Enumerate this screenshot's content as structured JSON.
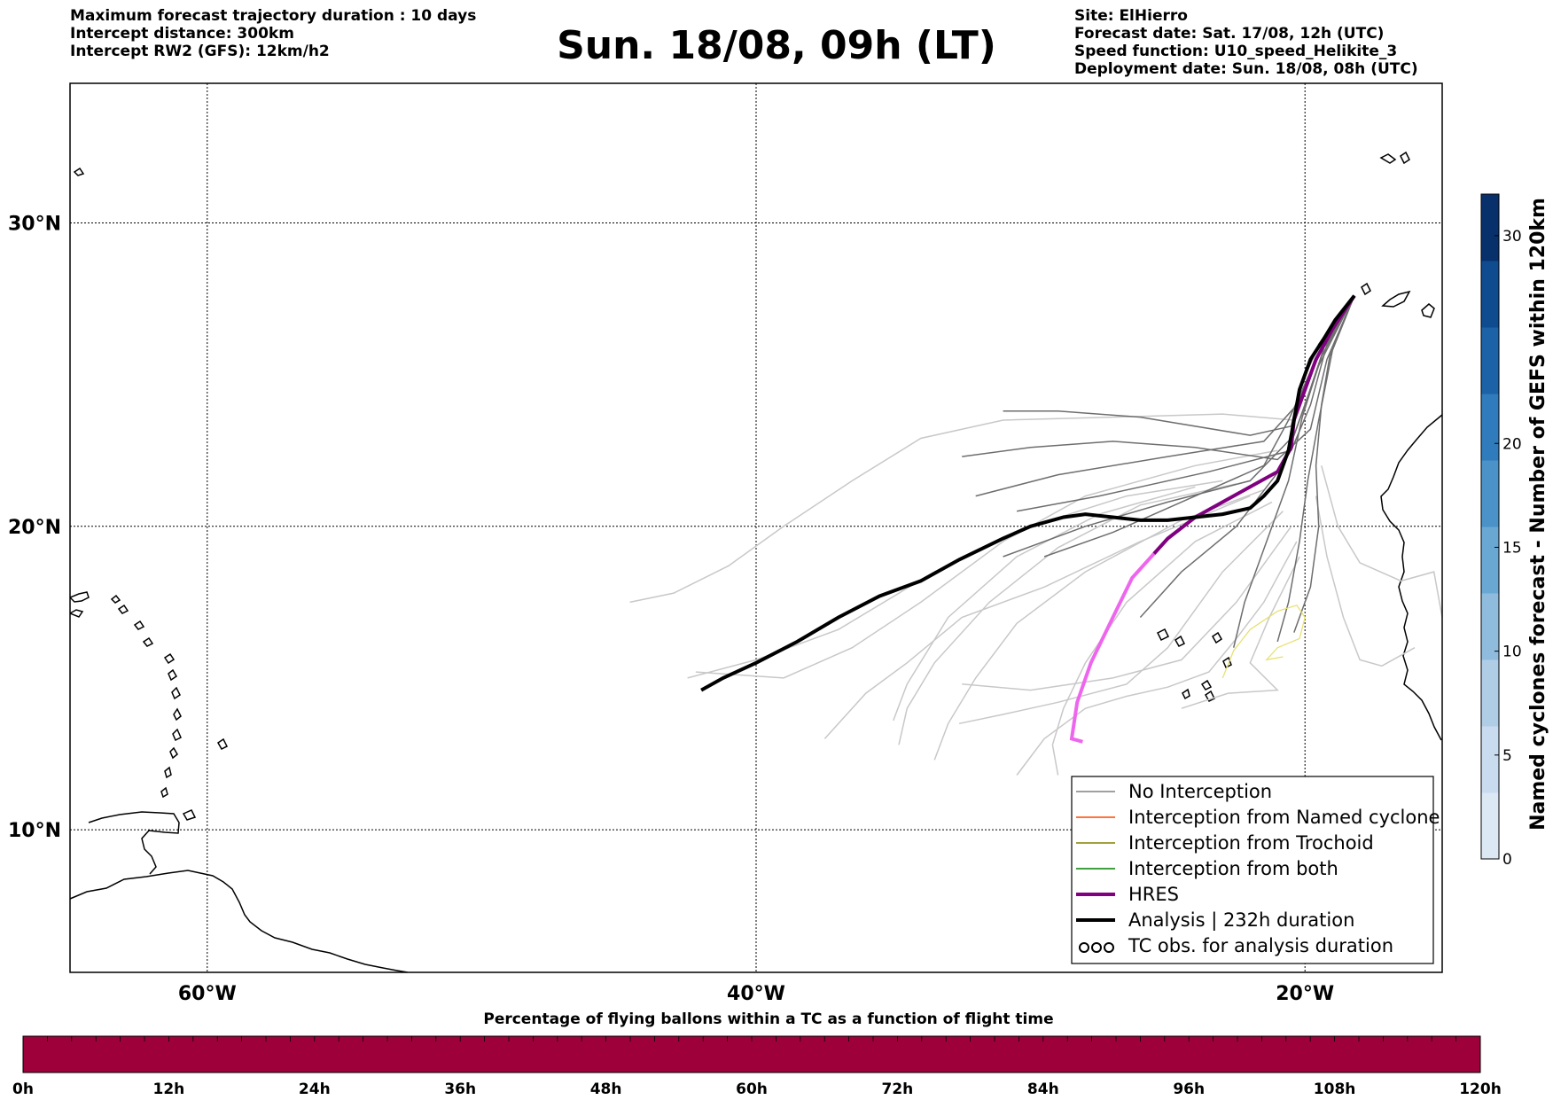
{
  "header_left": [
    "Maximum forecast trajectory duration : 10 days",
    "Intercept distance: 300km",
    "Intercept RW2 (GFS):  12km/h2"
  ],
  "title": "Sun. 18/08, 09h (LT)",
  "header_right": [
    "Site: ElHierro",
    "Forecast date: Sat. 17/08, 12h (UTC)",
    "Speed function: U10_speed_Helikite_3",
    "Deployment date: Sun. 18/08, 08h (UTC)"
  ],
  "map": {
    "lat_labels": [
      "30°N",
      "20°N",
      "10°N"
    ],
    "lon_labels": [
      "60°W",
      "40°W",
      "20°W"
    ],
    "lat_range": [
      5.3,
      34.6
    ],
    "lon_range": [
      -65,
      -15
    ],
    "grid": true
  },
  "legend": {
    "position": "lower-right",
    "items": [
      {
        "label": "No Interception",
        "color": "#808080",
        "style": "thin"
      },
      {
        "label": "Interception from Named cyclone",
        "color": "#ff4500",
        "style": "thin"
      },
      {
        "label": "Interception from Trochoid",
        "color": "#808000",
        "style": "thin"
      },
      {
        "label": "Interception from both",
        "color": "#008000",
        "style": "thin"
      },
      {
        "label": "HRES",
        "color": "#800080",
        "style": "thick"
      },
      {
        "label": "Analysis | 232h duration",
        "color": "#000000",
        "style": "thick"
      },
      {
        "label": "TC obs. for analysis duration",
        "color": "#000000",
        "style": "tc-symbol"
      }
    ]
  },
  "colorbar_right": {
    "label": "Named cyclones forecast - Number of GEFS within 120km",
    "ticks": [
      "0",
      "5",
      "10",
      "15",
      "20",
      "30"
    ],
    "tick_values": [
      0,
      5,
      10,
      15,
      20,
      30
    ],
    "max": 32,
    "colors": [
      "#dde8f5",
      "#c9dbef",
      "#b0cde6",
      "#8fbcdd",
      "#6aa8d4",
      "#4a92c7",
      "#2f7bbb",
      "#1b62a6",
      "#0e4b8f",
      "#08306b"
    ]
  },
  "colorbar_bottom": {
    "title": "Percentage of flying ballons within a TC as a function of flight time",
    "ticks": [
      "0h",
      "12h",
      "24h",
      "36h",
      "48h",
      "60h",
      "72h",
      "84h",
      "96h",
      "108h",
      "120h"
    ],
    "fill_color": "#9e003a"
  },
  "trajectories": {
    "analysis": [
      [
        -42.0,
        14.6
      ],
      [
        -41.2,
        15.0
      ],
      [
        -40.0,
        15.5
      ],
      [
        -38.5,
        16.2
      ],
      [
        -37.0,
        17.0
      ],
      [
        -35.5,
        17.7
      ],
      [
        -34.0,
        18.2
      ],
      [
        -32.6,
        18.9
      ],
      [
        -31.0,
        19.6
      ],
      [
        -30.0,
        20.0
      ],
      [
        -28.8,
        20.3
      ],
      [
        -28.0,
        20.4
      ],
      [
        -27.0,
        20.3
      ],
      [
        -26.0,
        20.2
      ],
      [
        -25.0,
        20.2
      ],
      [
        -24.0,
        20.3
      ],
      [
        -23.0,
        20.4
      ],
      [
        -22.0,
        20.6
      ],
      [
        -21.5,
        21.0
      ],
      [
        -21.0,
        21.5
      ],
      [
        -20.6,
        22.5
      ],
      [
        -20.4,
        23.5
      ],
      [
        -20.2,
        24.5
      ],
      [
        -19.8,
        25.5
      ],
      [
        -19.3,
        26.2
      ],
      [
        -18.9,
        26.8
      ],
      [
        -18.2,
        27.6
      ]
    ],
    "hres": [
      [
        -25.5,
        19.1
      ],
      [
        -25.0,
        19.6
      ],
      [
        -24.0,
        20.3
      ],
      [
        -23.0,
        20.8
      ],
      [
        -22.0,
        21.3
      ],
      [
        -21.0,
        21.8
      ],
      [
        -20.5,
        22.6
      ],
      [
        -20.4,
        23.5
      ],
      [
        -20.0,
        24.5
      ],
      [
        -19.6,
        25.5
      ],
      [
        -19.0,
        26.5
      ],
      [
        -18.2,
        27.6
      ]
    ],
    "hres_late": [
      [
        -25.5,
        19.1
      ],
      [
        -26.3,
        18.3
      ],
      [
        -27.0,
        17.0
      ],
      [
        -27.8,
        15.5
      ],
      [
        -28.3,
        14.2
      ],
      [
        -28.5,
        13.0
      ],
      [
        -28.1,
        12.9
      ]
    ],
    "members_dark": [
      [
        [
          -18.2,
          27.6
        ],
        [
          -19.5,
          26.0
        ],
        [
          -20.2,
          24.5
        ],
        [
          -20.5,
          23.3
        ],
        [
          -22.0,
          23.0
        ],
        [
          -26.0,
          23.6
        ],
        [
          -29.0,
          23.8
        ],
        [
          -31.0,
          23.8
        ]
      ],
      [
        [
          -18.2,
          27.6
        ],
        [
          -19.4,
          25.8
        ],
        [
          -20.3,
          24.0
        ],
        [
          -21.5,
          22.8
        ],
        [
          -25.0,
          22.3
        ],
        [
          -29.0,
          21.7
        ],
        [
          -32.0,
          21.0
        ]
      ],
      [
        [
          -18.2,
          27.6
        ],
        [
          -19.2,
          26.0
        ],
        [
          -19.8,
          24.0
        ],
        [
          -20.5,
          22.5
        ],
        [
          -23.5,
          21.8
        ],
        [
          -27.5,
          21.0
        ],
        [
          -30.5,
          20.5
        ]
      ],
      [
        [
          -18.2,
          27.6
        ],
        [
          -19.6,
          25.5
        ],
        [
          -20.6,
          23.5
        ],
        [
          -21.5,
          22.0
        ],
        [
          -24.0,
          21.0
        ],
        [
          -27.0,
          19.8
        ],
        [
          -29.5,
          19.0
        ]
      ],
      [
        [
          -18.2,
          27.6
        ],
        [
          -19.3,
          25.9
        ],
        [
          -20.0,
          24.0
        ],
        [
          -20.8,
          22.0
        ],
        [
          -22.5,
          20.0
        ],
        [
          -24.5,
          18.5
        ],
        [
          -26.0,
          17.0
        ]
      ],
      [
        [
          -18.2,
          27.6
        ],
        [
          -19.4,
          25.6
        ],
        [
          -20.1,
          23.6
        ],
        [
          -20.6,
          21.5
        ],
        [
          -21.4,
          19.5
        ],
        [
          -22.2,
          17.5
        ],
        [
          -22.6,
          16.0
        ]
      ],
      [
        [
          -18.2,
          27.6
        ],
        [
          -19.0,
          25.8
        ],
        [
          -19.5,
          23.5
        ],
        [
          -19.9,
          21.5
        ],
        [
          -20.2,
          19.5
        ],
        [
          -20.6,
          17.5
        ],
        [
          -21.0,
          16.2
        ]
      ],
      [
        [
          -18.2,
          27.6
        ],
        [
          -19.1,
          25.6
        ],
        [
          -19.4,
          24.0
        ],
        [
          -19.6,
          22.0
        ],
        [
          -19.5,
          20.0
        ],
        [
          -19.8,
          18.0
        ],
        [
          -20.4,
          16.5
        ]
      ],
      [
        [
          -18.2,
          27.6
        ],
        [
          -19.2,
          25.5
        ],
        [
          -19.8,
          23.2
        ],
        [
          -21.0,
          22.2
        ],
        [
          -24.0,
          22.6
        ],
        [
          -27.0,
          22.8
        ],
        [
          -30.0,
          22.6
        ],
        [
          -32.5,
          22.3
        ]
      ],
      [
        [
          -18.2,
          27.6
        ],
        [
          -19.5,
          25.3
        ],
        [
          -20.4,
          23.0
        ],
        [
          -22.0,
          21.5
        ],
        [
          -25.0,
          20.8
        ],
        [
          -28.0,
          20.0
        ],
        [
          -31.0,
          19.0
        ]
      ]
    ],
    "members_light": [
      [
        [
          -20.4,
          23.5
        ],
        [
          -23.0,
          23.7
        ],
        [
          -27.0,
          23.6
        ],
        [
          -31.0,
          23.5
        ],
        [
          -34.0,
          22.9
        ],
        [
          -36.5,
          21.5
        ],
        [
          -39.0,
          20.0
        ],
        [
          -41.0,
          18.7
        ],
        [
          -43.0,
          17.8
        ],
        [
          -44.6,
          17.5
        ]
      ],
      [
        [
          -21.0,
          22.5
        ],
        [
          -24.0,
          22.0
        ],
        [
          -28.0,
          21.0
        ],
        [
          -31.0,
          19.5
        ],
        [
          -34.0,
          17.5
        ],
        [
          -36.5,
          16.0
        ],
        [
          -39.0,
          15.0
        ],
        [
          -42.2,
          15.2
        ]
      ],
      [
        [
          -21.5,
          21.2
        ],
        [
          -24.5,
          20.2
        ],
        [
          -28.0,
          18.5
        ],
        [
          -30.5,
          16.8
        ],
        [
          -32.0,
          15.0
        ],
        [
          -33.0,
          13.5
        ],
        [
          -33.5,
          12.3
        ]
      ],
      [
        [
          -21.2,
          20.8
        ],
        [
          -24.0,
          19.5
        ],
        [
          -26.5,
          17.5
        ],
        [
          -28.0,
          15.5
        ],
        [
          -28.8,
          14.0
        ],
        [
          -29.2,
          12.8
        ],
        [
          -29.0,
          11.8
        ]
      ],
      [
        [
          -20.8,
          20.5
        ],
        [
          -23.0,
          18.5
        ],
        [
          -25.0,
          16.0
        ],
        [
          -26.5,
          14.8
        ],
        [
          -29.0,
          14.2
        ],
        [
          -31.0,
          13.8
        ],
        [
          -32.6,
          13.5
        ]
      ],
      [
        [
          -20.5,
          20.0
        ],
        [
          -22.5,
          17.5
        ],
        [
          -24.5,
          15.6
        ],
        [
          -27.0,
          15.0
        ],
        [
          -30.0,
          14.6
        ],
        [
          -32.5,
          14.8
        ]
      ],
      [
        [
          -20.3,
          19.5
        ],
        [
          -21.5,
          17.5
        ],
        [
          -22.5,
          16.3
        ],
        [
          -23.5,
          15.2
        ],
        [
          -25.0,
          14.7
        ],
        [
          -26.5,
          14.4
        ],
        [
          -28.0,
          14.0
        ],
        [
          -29.5,
          13.0
        ],
        [
          -30.5,
          11.8
        ]
      ],
      [
        [
          -20.2,
          19.0
        ],
        [
          -21.3,
          17.0
        ],
        [
          -22.0,
          15.5
        ],
        [
          -21.0,
          14.6
        ],
        [
          -22.8,
          14.5
        ],
        [
          -24.5,
          14.0
        ]
      ],
      [
        [
          -22.0,
          21.0
        ],
        [
          -26.0,
          19.5
        ],
        [
          -29.5,
          18.0
        ],
        [
          -32.5,
          17.0
        ],
        [
          -34.5,
          15.5
        ],
        [
          -36.0,
          14.5
        ],
        [
          -37.5,
          13.0
        ]
      ],
      [
        [
          -23.0,
          21.5
        ],
        [
          -26.5,
          21.0
        ],
        [
          -30.0,
          20.0
        ],
        [
          -33.5,
          18.5
        ],
        [
          -37.0,
          16.6
        ],
        [
          -40.0,
          15.6
        ],
        [
          -42.5,
          15.0
        ]
      ],
      [
        [
          -22.5,
          21.4
        ],
        [
          -26.0,
          20.7
        ],
        [
          -29.0,
          19.3
        ],
        [
          -31.5,
          17.5
        ],
        [
          -33.5,
          15.5
        ],
        [
          -34.5,
          14.0
        ],
        [
          -34.8,
          12.8
        ]
      ],
      [
        [
          -24.0,
          21.3
        ],
        [
          -27.5,
          20.4
        ],
        [
          -30.5,
          19.0
        ],
        [
          -33.0,
          17.0
        ],
        [
          -34.5,
          14.8
        ],
        [
          -35.0,
          13.6
        ]
      ],
      [
        [
          -19.4,
          22.0
        ],
        [
          -18.8,
          20.0
        ],
        [
          -18.0,
          18.8
        ],
        [
          -16.5,
          18.2
        ],
        [
          -15.3,
          18.5
        ],
        [
          -15.0,
          17.0
        ]
      ],
      [
        [
          -19.6,
          21.0
        ],
        [
          -19.2,
          19.0
        ],
        [
          -18.6,
          17.0
        ],
        [
          -18.0,
          15.6
        ],
        [
          -17.2,
          15.4
        ],
        [
          -16.0,
          16.0
        ]
      ]
    ],
    "trochoid": [
      [
        -23.0,
        15.0
      ],
      [
        -22.6,
        15.9
      ],
      [
        -22.0,
        16.6
      ],
      [
        -21.0,
        17.2
      ],
      [
        -20.3,
        17.4
      ],
      [
        -20.0,
        17.0
      ],
      [
        -20.2,
        16.3
      ],
      [
        -21.0,
        16.0
      ],
      [
        -21.4,
        15.6
      ],
      [
        -20.8,
        15.7
      ]
    ]
  }
}
